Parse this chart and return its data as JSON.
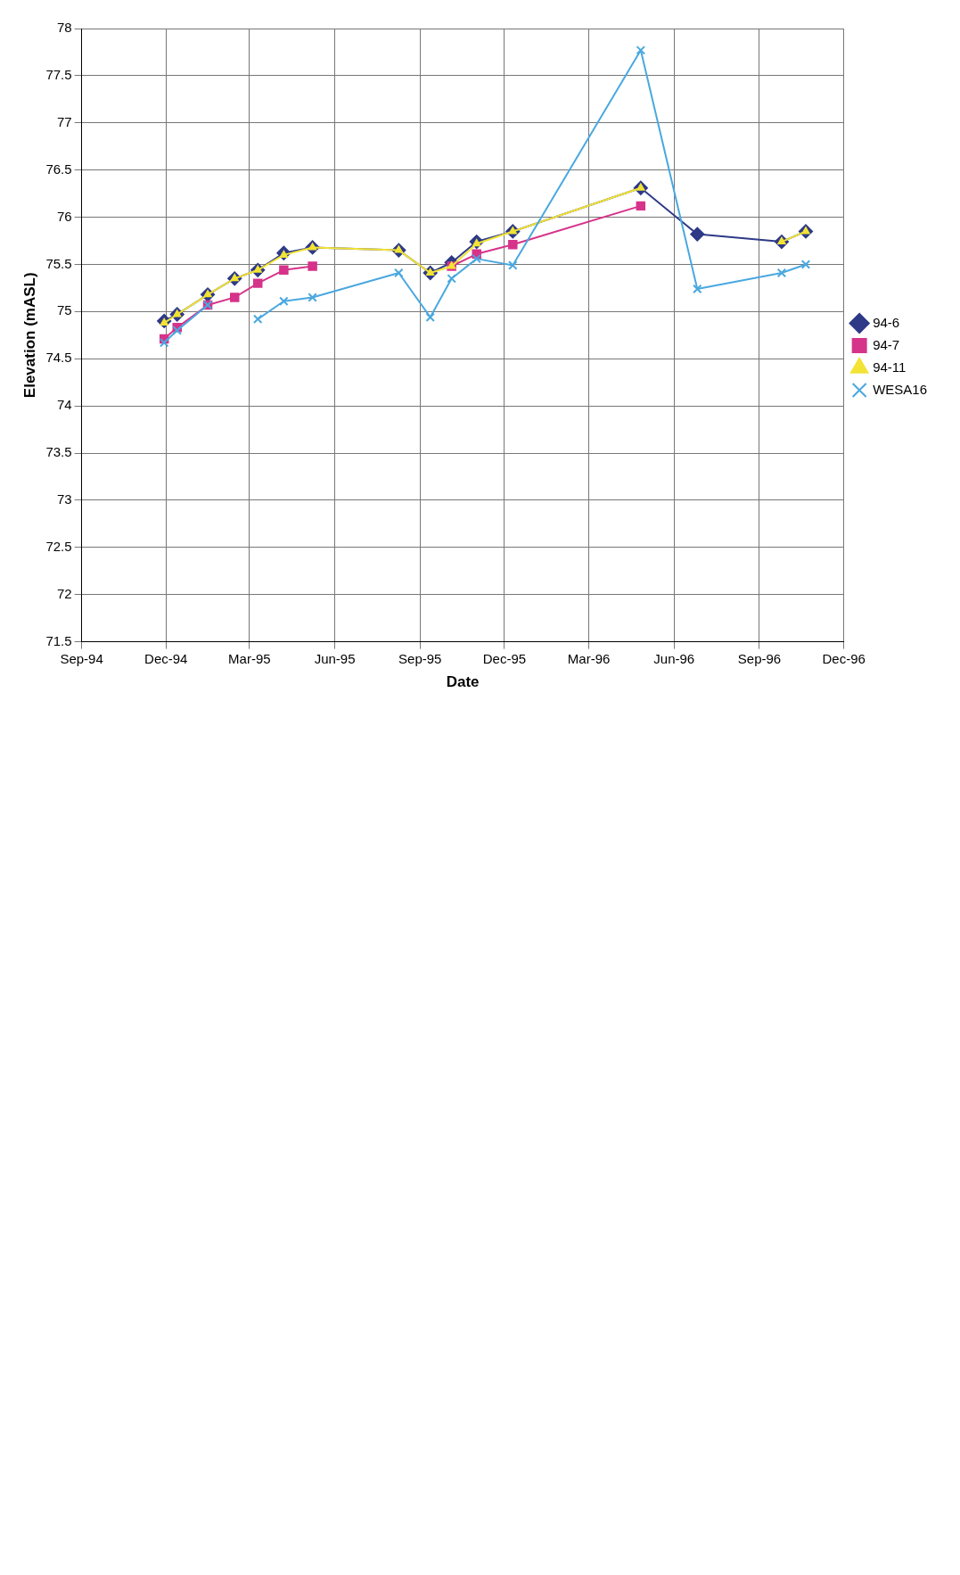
{
  "chart_data": {
    "type": "line",
    "xlabel": "Date",
    "ylabel": "Elevation (mASL)",
    "x": [
      "1994-11-29",
      "1994-12-13",
      "1995-01-15",
      "1995-02-13",
      "1995-03-10",
      "1995-04-07",
      "1995-05-08",
      "1995-08-09",
      "1995-09-12",
      "1995-10-05",
      "1995-11-01",
      "1995-12-10",
      "1996-04-26",
      "1996-06-26",
      "1996-09-25",
      "1996-10-21"
    ],
    "series": [
      {
        "name": "94-6",
        "color": "#2e3a87",
        "marker": "diamond",
        "values": [
          74.9,
          74.97,
          75.18,
          75.35,
          75.44,
          75.62,
          75.68,
          75.65,
          75.41,
          75.52,
          75.74,
          75.85,
          76.31,
          75.82,
          75.74,
          75.85
        ]
      },
      {
        "name": "94-7",
        "color": "#d6338a",
        "marker": "square",
        "values": [
          74.71,
          74.83,
          75.07,
          75.15,
          75.3,
          75.44,
          75.48,
          null,
          null,
          75.48,
          75.61,
          75.71,
          76.12,
          null,
          null,
          null
        ]
      },
      {
        "name": "94-11",
        "color": "#f2e335",
        "marker": "triangle",
        "values": [
          74.88,
          74.97,
          75.18,
          75.35,
          75.44,
          75.6,
          75.68,
          75.65,
          75.41,
          75.48,
          75.72,
          75.85,
          76.31,
          null,
          75.74,
          75.85
        ]
      },
      {
        "name": "WESA16",
        "color": "#4aa8e0",
        "marker": "cross",
        "values": [
          74.67,
          74.8,
          75.07,
          null,
          74.92,
          75.11,
          75.15,
          75.41,
          74.94,
          75.35,
          75.56,
          75.49,
          77.77,
          75.24,
          75.41,
          75.5
        ]
      }
    ],
    "xlim": [
      "1994-09-01",
      "1996-12-01"
    ],
    "xticks": [
      {
        "value": "1994-09-01",
        "label": "Sep-94"
      },
      {
        "value": "1994-12-01",
        "label": "Dec-94"
      },
      {
        "value": "1995-03-01",
        "label": "Mar-95"
      },
      {
        "value": "1995-06-01",
        "label": "Jun-95"
      },
      {
        "value": "1995-09-01",
        "label": "Sep-95"
      },
      {
        "value": "1995-12-01",
        "label": "Dec-95"
      },
      {
        "value": "1996-03-01",
        "label": "Mar-96"
      },
      {
        "value": "1996-06-01",
        "label": "Jun-96"
      },
      {
        "value": "1996-09-01",
        "label": "Sep-96"
      },
      {
        "value": "1996-12-01",
        "label": "Dec-96"
      }
    ],
    "ylim": [
      71.5,
      78
    ],
    "yticks": [
      71.5,
      72,
      72.5,
      73,
      73.5,
      74,
      74.5,
      75,
      75.5,
      76,
      76.5,
      77,
      77.5,
      78
    ],
    "grid": true,
    "legend": "right"
  }
}
